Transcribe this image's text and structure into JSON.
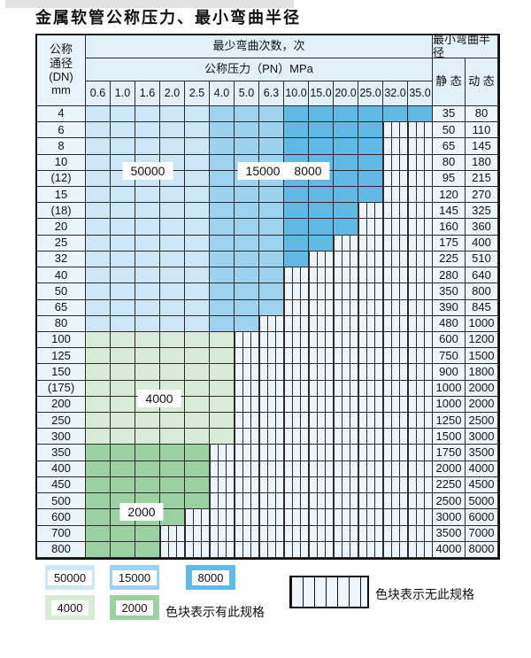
{
  "title": "金属软管公称压力、最小弯曲半径",
  "table": {
    "dn_header_lines": [
      "公称",
      "通径",
      "(DN)",
      "mm"
    ],
    "bend_cycles_header": "最少弯曲次数，次",
    "pressure_header": "公称压力（PN）MPa",
    "radius_header": "最小弯曲半径",
    "static_header": "静 态",
    "dynamic_header": "动 态",
    "pressures": [
      "0.6",
      "1.0",
      "1.6",
      "2.0",
      "2.5",
      "4.0",
      "5.0",
      "6.3",
      "10.0",
      "15.0",
      "20.0",
      "25.0",
      "32.0",
      "35.0"
    ],
    "rows": [
      {
        "dn": "4",
        "colored": 14,
        "zone": "blue",
        "static": "35",
        "dynamic": "80"
      },
      {
        "dn": "6",
        "colored": 12,
        "zone": "blue",
        "static": "50",
        "dynamic": "110"
      },
      {
        "dn": "8",
        "colored": 12,
        "zone": "blue",
        "static": "65",
        "dynamic": "145"
      },
      {
        "dn": "10",
        "colored": 12,
        "zone": "blue",
        "static": "80",
        "dynamic": "180"
      },
      {
        "dn": "(12)",
        "colored": 12,
        "zone": "blue",
        "static": "95",
        "dynamic": "215"
      },
      {
        "dn": "15",
        "colored": 12,
        "zone": "blue",
        "static": "120",
        "dynamic": "270"
      },
      {
        "dn": "(18)",
        "colored": 11,
        "zone": "blue",
        "static": "145",
        "dynamic": "325"
      },
      {
        "dn": "20",
        "colored": 11,
        "zone": "blue",
        "static": "160",
        "dynamic": "360"
      },
      {
        "dn": "25",
        "colored": 10,
        "zone": "blue",
        "static": "175",
        "dynamic": "400"
      },
      {
        "dn": "32",
        "colored": 9,
        "zone": "blue",
        "static": "225",
        "dynamic": "510"
      },
      {
        "dn": "40",
        "colored": 8,
        "zone": "blue",
        "static": "280",
        "dynamic": "640"
      },
      {
        "dn": "50",
        "colored": 8,
        "zone": "blue",
        "static": "350",
        "dynamic": "800"
      },
      {
        "dn": "65",
        "colored": 8,
        "zone": "blue",
        "static": "390",
        "dynamic": "845"
      },
      {
        "dn": "80",
        "colored": 7,
        "zone": "blue",
        "static": "480",
        "dynamic": "1000"
      },
      {
        "dn": "100",
        "colored": 6,
        "zone": "g1",
        "static": "600",
        "dynamic": "1200"
      },
      {
        "dn": "125",
        "colored": 6,
        "zone": "g1",
        "static": "750",
        "dynamic": "1500"
      },
      {
        "dn": "150",
        "colored": 6,
        "zone": "g1",
        "static": "900",
        "dynamic": "1800"
      },
      {
        "dn": "(175)",
        "colored": 6,
        "zone": "g1",
        "static": "1000",
        "dynamic": "2000"
      },
      {
        "dn": "200",
        "colored": 6,
        "zone": "g1",
        "static": "1000",
        "dynamic": "2000"
      },
      {
        "dn": "250",
        "colored": 6,
        "zone": "g1",
        "static": "1250",
        "dynamic": "2500"
      },
      {
        "dn": "300",
        "colored": 6,
        "zone": "g1",
        "static": "1500",
        "dynamic": "3000"
      },
      {
        "dn": "350",
        "colored": 5,
        "zone": "g2",
        "static": "1750",
        "dynamic": "3500"
      },
      {
        "dn": "400",
        "colored": 5,
        "zone": "g2",
        "static": "2000",
        "dynamic": "4000"
      },
      {
        "dn": "450",
        "colored": 5,
        "zone": "g2",
        "static": "2250",
        "dynamic": "4500"
      },
      {
        "dn": "500",
        "colored": 5,
        "zone": "g2",
        "static": "2500",
        "dynamic": "5000"
      },
      {
        "dn": "600",
        "colored": 4,
        "zone": "g2",
        "static": "3000",
        "dynamic": "6000"
      },
      {
        "dn": "700",
        "colored": 3,
        "zone": "g2",
        "static": "3500",
        "dynamic": "7000"
      },
      {
        "dn": "800",
        "colored": 3,
        "zone": "g2",
        "static": "4000",
        "dynamic": "8000"
      }
    ]
  },
  "cycle_labels": {
    "c50000": "50000",
    "c15000": "15000",
    "c8000": "8000",
    "c4000": "4000",
    "c2000": "2000"
  },
  "legend": {
    "items": [
      {
        "label": "50000",
        "color": "#cde7f7",
        "zone": "b1"
      },
      {
        "label": "15000",
        "color": "#9ed2f0",
        "zone": "b2"
      },
      {
        "label": "8000",
        "color": "#63b9e6",
        "zone": "b3"
      },
      {
        "label": "4000",
        "color": "#d7ebd7",
        "zone": "g1"
      },
      {
        "label": "2000",
        "color": "#9bd0a3",
        "zone": "g2"
      }
    ],
    "has_spec_text": "色块表示有此规格",
    "no_spec_text": "色块表示无此规格"
  }
}
